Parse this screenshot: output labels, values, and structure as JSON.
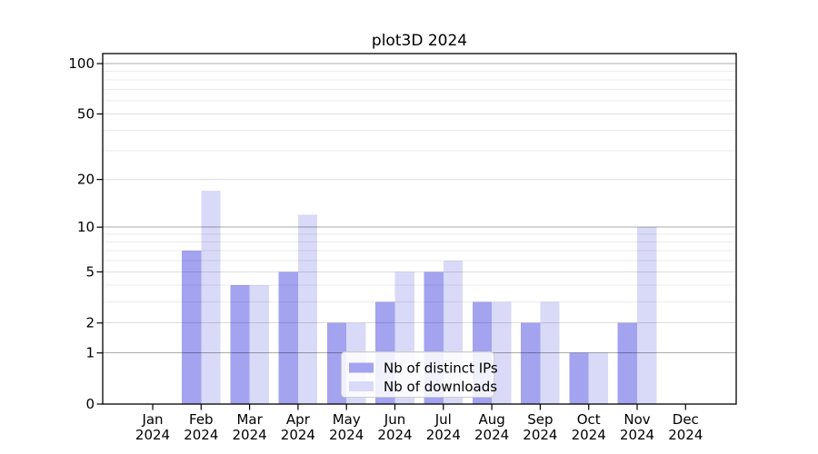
{
  "chart_data": {
    "type": "bar",
    "title": "plot3D 2024",
    "categories": [
      "Jan 2024",
      "Feb 2024",
      "Mar 2024",
      "Apr 2024",
      "May 2024",
      "Jun 2024",
      "Jul 2024",
      "Aug 2024",
      "Sep 2024",
      "Oct 2024",
      "Nov 2024",
      "Dec 2024"
    ],
    "series": [
      {
        "name": "Nb of distinct IPs",
        "color": "#a3a3f0",
        "values": [
          0,
          7,
          4,
          5,
          2,
          3,
          5,
          3,
          2,
          1,
          2,
          0
        ]
      },
      {
        "name": "Nb of downloads",
        "color": "#d9d9f8",
        "values": [
          0,
          17,
          4,
          12,
          2,
          5,
          6,
          3,
          3,
          1,
          10,
          0
        ]
      }
    ],
    "y_axis": {
      "scale": "log1p",
      "tick_values": [
        0,
        1,
        2,
        5,
        10,
        20,
        50,
        100
      ],
      "tick_labels": [
        "0",
        "1",
        "2",
        "5",
        "10",
        "20",
        "50",
        "100"
      ],
      "decade_gridlines": [
        1,
        10,
        100
      ],
      "mid_gridlines": [
        2,
        5,
        20,
        50
      ],
      "minor_gridlines": [
        3,
        4,
        6,
        7,
        8,
        9,
        30,
        40,
        60,
        70,
        80,
        90
      ],
      "ylim_top": 115
    },
    "legend_position": "lower center",
    "grid": true
  },
  "colors": {
    "background": "#ffffff",
    "frame": "#000000",
    "decade_grid": "rgba(0,0,0,0.33)",
    "mid_grid": "rgba(0,0,0,0.13)",
    "minor_grid": "rgba(0,0,0,0.08)",
    "legend_bg": "rgba(255,255,255,0.85)",
    "legend_border": "#cccccc",
    "text": "#000000"
  }
}
